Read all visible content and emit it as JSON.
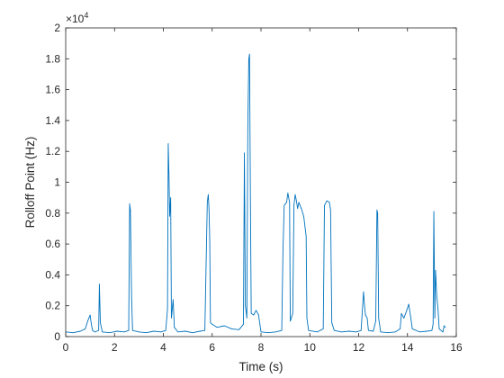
{
  "chart_data": {
    "type": "line",
    "xlabel": "Time (s)",
    "ylabel": "Rolloff Point (Hz)",
    "exponent_label": {
      "base": "×10",
      "power": "4"
    },
    "xlim": [
      0,
      16
    ],
    "ylim": [
      0,
      20000
    ],
    "x_ticks": [
      {
        "value": 0,
        "label": "0"
      },
      {
        "value": 2,
        "label": "2"
      },
      {
        "value": 4,
        "label": "4"
      },
      {
        "value": 6,
        "label": "6"
      },
      {
        "value": 8,
        "label": "8"
      },
      {
        "value": 10,
        "label": "10"
      },
      {
        "value": 12,
        "label": "12"
      },
      {
        "value": 14,
        "label": "14"
      },
      {
        "value": 16,
        "label": "16"
      }
    ],
    "y_ticks": [
      {
        "value": 0,
        "label": "0"
      },
      {
        "value": 2000,
        "label": "0.2"
      },
      {
        "value": 4000,
        "label": "0.4"
      },
      {
        "value": 6000,
        "label": "0.6"
      },
      {
        "value": 8000,
        "label": "0.8"
      },
      {
        "value": 10000,
        "label": "1"
      },
      {
        "value": 12000,
        "label": "1.2"
      },
      {
        "value": 14000,
        "label": "1.4"
      },
      {
        "value": 16000,
        "label": "1.6"
      },
      {
        "value": 18000,
        "label": "1.8"
      },
      {
        "value": 20000,
        "label": "2"
      }
    ],
    "grid": false,
    "line_color": "#0072bd",
    "series": [
      {
        "values": [
          [
            0.0,
            300
          ],
          [
            0.3,
            250
          ],
          [
            0.6,
            350
          ],
          [
            0.8,
            500
          ],
          [
            0.9,
            1000
          ],
          [
            0.95,
            1200
          ],
          [
            1.0,
            1400
          ],
          [
            1.05,
            800
          ],
          [
            1.1,
            400
          ],
          [
            1.2,
            300
          ],
          [
            1.35,
            400
          ],
          [
            1.38,
            3400
          ],
          [
            1.42,
            900
          ],
          [
            1.5,
            300
          ],
          [
            1.8,
            250
          ],
          [
            2.1,
            350
          ],
          [
            2.4,
            300
          ],
          [
            2.58,
            400
          ],
          [
            2.62,
            8600
          ],
          [
            2.65,
            8200
          ],
          [
            2.7,
            2500
          ],
          [
            2.74,
            400
          ],
          [
            3.0,
            300
          ],
          [
            3.3,
            250
          ],
          [
            3.6,
            350
          ],
          [
            3.9,
            300
          ],
          [
            4.1,
            400
          ],
          [
            4.17,
            1800
          ],
          [
            4.2,
            12500
          ],
          [
            4.23,
            10500
          ],
          [
            4.26,
            7800
          ],
          [
            4.3,
            9000
          ],
          [
            4.33,
            1200
          ],
          [
            4.4,
            2400
          ],
          [
            4.45,
            600
          ],
          [
            4.6,
            300
          ],
          [
            4.9,
            350
          ],
          [
            5.2,
            250
          ],
          [
            5.5,
            350
          ],
          [
            5.7,
            400
          ],
          [
            5.8,
            8700
          ],
          [
            5.84,
            9200
          ],
          [
            5.87,
            8300
          ],
          [
            5.9,
            6300
          ],
          [
            5.93,
            900
          ],
          [
            6.0,
            800
          ],
          [
            6.2,
            600
          ],
          [
            6.5,
            700
          ],
          [
            6.8,
            500
          ],
          [
            7.1,
            450
          ],
          [
            7.28,
            800
          ],
          [
            7.32,
            11900
          ],
          [
            7.36,
            2000
          ],
          [
            7.42,
            1200
          ],
          [
            7.46,
            13500
          ],
          [
            7.5,
            18000
          ],
          [
            7.53,
            18300
          ],
          [
            7.57,
            8000
          ],
          [
            7.6,
            1500
          ],
          [
            7.7,
            1400
          ],
          [
            7.8,
            1700
          ],
          [
            7.9,
            1400
          ],
          [
            8.0,
            300
          ],
          [
            8.3,
            250
          ],
          [
            8.6,
            300
          ],
          [
            8.85,
            400
          ],
          [
            8.9,
            5500
          ],
          [
            8.95,
            8500
          ],
          [
            9.05,
            8700
          ],
          [
            9.1,
            9300
          ],
          [
            9.17,
            8700
          ],
          [
            9.2,
            1000
          ],
          [
            9.3,
            1500
          ],
          [
            9.35,
            8500
          ],
          [
            9.4,
            9200
          ],
          [
            9.45,
            8800
          ],
          [
            9.5,
            8300
          ],
          [
            9.55,
            8700
          ],
          [
            9.65,
            8300
          ],
          [
            9.75,
            7800
          ],
          [
            9.85,
            6500
          ],
          [
            9.88,
            1200
          ],
          [
            9.95,
            400
          ],
          [
            10.3,
            300
          ],
          [
            10.55,
            500
          ],
          [
            10.6,
            8500
          ],
          [
            10.7,
            8800
          ],
          [
            10.8,
            8700
          ],
          [
            10.85,
            8200
          ],
          [
            10.9,
            900
          ],
          [
            11.0,
            400
          ],
          [
            11.3,
            300
          ],
          [
            11.6,
            350
          ],
          [
            11.9,
            300
          ],
          [
            12.1,
            400
          ],
          [
            12.2,
            2900
          ],
          [
            12.24,
            2000
          ],
          [
            12.28,
            1400
          ],
          [
            12.35,
            1200
          ],
          [
            12.4,
            400
          ],
          [
            12.6,
            350
          ],
          [
            12.7,
            1000
          ],
          [
            12.75,
            8200
          ],
          [
            12.78,
            8000
          ],
          [
            12.82,
            1200
          ],
          [
            12.9,
            300
          ],
          [
            13.2,
            250
          ],
          [
            13.5,
            300
          ],
          [
            13.7,
            500
          ],
          [
            13.75,
            1500
          ],
          [
            13.85,
            1200
          ],
          [
            13.95,
            1600
          ],
          [
            14.05,
            2100
          ],
          [
            14.1,
            1600
          ],
          [
            14.2,
            500
          ],
          [
            14.5,
            300
          ],
          [
            14.8,
            350
          ],
          [
            15.0,
            400
          ],
          [
            15.05,
            800
          ],
          [
            15.08,
            8100
          ],
          [
            15.12,
            1200
          ],
          [
            15.15,
            4300
          ],
          [
            15.2,
            2600
          ],
          [
            15.25,
            1800
          ],
          [
            15.3,
            500
          ],
          [
            15.45,
            300
          ],
          [
            15.5,
            700
          ],
          [
            15.55,
            600
          ]
        ]
      }
    ]
  }
}
